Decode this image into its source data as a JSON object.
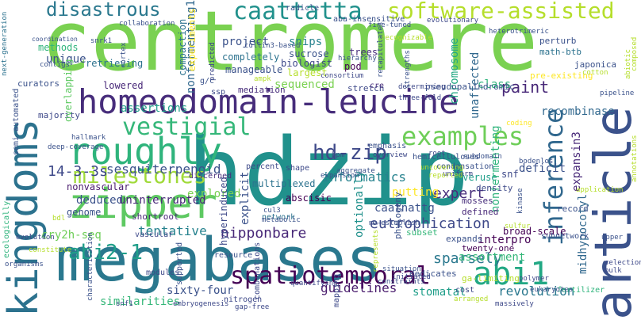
{
  "words": [
    {
      "text": "hdzip",
      "color": "#21918c"
    },
    {
      "text": "centromere",
      "color": "#7ad151"
    },
    {
      "text": "megabases",
      "color": "#2a788e"
    },
    {
      "text": "homeodomain-leucine",
      "color": "#472d7b"
    },
    {
      "text": "article",
      "color": "#3b528b"
    },
    {
      "text": "kingdoms",
      "color": "#2c728e"
    },
    {
      "text": "zipper",
      "color": "#5ec962"
    },
    {
      "text": "roughly",
      "color": "#2fb47c"
    },
    {
      "text": "spatiotemporal",
      "color": "#440154"
    },
    {
      "text": "abi1",
      "color": "#22a884"
    },
    {
      "text": "software-assisted",
      "color": "#b5de2b"
    },
    {
      "text": "disastrous",
      "color": "#2a788e"
    },
    {
      "text": "caattatta",
      "color": "#21918c"
    },
    {
      "text": "inference",
      "color": "#31688e"
    },
    {
      "text": "examples",
      "color": "#6ece58"
    },
    {
      "text": "milestones",
      "color": "#a0da39"
    },
    {
      "text": "hd-zip",
      "color": "#3e4989"
    },
    {
      "text": "vestigial",
      "color": "#35b779"
    },
    {
      "text": "abi2-1",
      "color": "#1f9e89"
    },
    {
      "text": "eutrophication",
      "color": "#3e4989"
    },
    {
      "text": "paint",
      "color": "#482878"
    },
    {
      "text": "expert",
      "color": "#472d7b"
    },
    {
      "text": "informatics",
      "color": "#26828e"
    },
    {
      "text": "nipponbare",
      "color": "#482878"
    },
    {
      "text": "tentative",
      "color": "#26828e"
    },
    {
      "text": "sparsely",
      "color": "#2a788e"
    },
    {
      "text": "guidelines",
      "color": "#481a6c"
    },
    {
      "text": "revolution",
      "color": "#2a788e"
    },
    {
      "text": "sesquiterpenoid",
      "color": "#3b528b"
    },
    {
      "text": "14-3-3s",
      "color": "#3e4989"
    },
    {
      "text": "assertions",
      "color": "#1f9e89"
    },
    {
      "text": "cry2h-seq",
      "color": "#6ece58"
    },
    {
      "text": "explored",
      "color": "#7ad151"
    },
    {
      "text": "deduced",
      "color": "#3b528b"
    },
    {
      "text": "uninterrupted",
      "color": "#482878"
    },
    {
      "text": "snips",
      "color": "#26828e"
    },
    {
      "text": "project",
      "color": "#3b528b"
    },
    {
      "text": "unique",
      "color": "#3b528b"
    },
    {
      "text": "class",
      "color": "#2fb47c"
    },
    {
      "text": "putting",
      "color": "#fde725"
    },
    {
      "text": "assortment",
      "color": "#35b779"
    },
    {
      "text": "stomatal",
      "color": "#1f9e89"
    },
    {
      "text": "sixty-four",
      "color": "#3b528b"
    },
    {
      "text": "similarities",
      "color": "#35b779"
    },
    {
      "text": "interpro",
      "color": "#440154"
    },
    {
      "text": "caatnattg",
      "color": "#3b528b"
    },
    {
      "text": "recombinase",
      "color": "#31688e"
    },
    {
      "text": "expansin3",
      "color": "#482878"
    },
    {
      "text": "midhypocotyl",
      "color": "#31688e"
    },
    {
      "text": "nonfermenting1",
      "color": "#31688e"
    },
    {
      "text": "chromosome",
      "color": "#22a884"
    },
    {
      "text": "unaffected",
      "color": "#31688e"
    },
    {
      "text": "deficit",
      "color": "#3b528b"
    },
    {
      "text": "snf",
      "color": "#3e4989"
    },
    {
      "text": "overuse",
      "color": "#1f9e89"
    },
    {
      "text": "nonvascular",
      "color": "#481a6c"
    },
    {
      "text": "genome",
      "color": "#3b528b"
    },
    {
      "text": "optionally",
      "color": "#21918c"
    },
    {
      "text": "explicit",
      "color": "#3b528b"
    },
    {
      "text": "multiplexed",
      "color": "#2c728e"
    },
    {
      "text": "hyperinduced",
      "color": "#3e4989"
    },
    {
      "text": "nonfermenting",
      "color": "#2fb47c"
    },
    {
      "text": "broad-scale",
      "color": "#440154"
    },
    {
      "text": "abscisic",
      "color": "#440154"
    },
    {
      "text": "sequenced",
      "color": "#7ad151"
    },
    {
      "text": "completely",
      "color": "#2c728e"
    },
    {
      "text": "manageable",
      "color": "#3b528b"
    },
    {
      "text": "compaction",
      "color": "#2c728e"
    },
    {
      "text": "sucrose",
      "color": "#3b528b"
    },
    {
      "text": "trees",
      "color": "#472d7b"
    },
    {
      "text": "biologist",
      "color": "#3e4989"
    },
    {
      "text": "largest",
      "color": "#b5de2b"
    },
    {
      "text": "pod",
      "color": "#440154"
    },
    {
      "text": "lowered",
      "color": "#482878"
    },
    {
      "text": "retrieving",
      "color": "#2c728e"
    },
    {
      "text": "methods",
      "color": "#2fb47c"
    },
    {
      "text": "coordination",
      "color": "#3b528b"
    },
    {
      "text": "curators",
      "color": "#3b528b"
    },
    {
      "text": "majority",
      "color": "#3e4989"
    },
    {
      "text": "overlapping",
      "color": "#5ec962"
    },
    {
      "text": "semi-automated",
      "color": "#3b528b"
    },
    {
      "text": "ecologically",
      "color": "#2fb47c"
    },
    {
      "text": "mediation",
      "color": "#472d7b"
    },
    {
      "text": "stretch",
      "color": "#3e4989"
    },
    {
      "text": "pseudopalindromic",
      "color": "#3b528b"
    },
    {
      "text": "perturb",
      "color": "#3b528b"
    },
    {
      "text": "math-btb",
      "color": "#2c728e"
    },
    {
      "text": "japonica",
      "color": "#3b528b"
    },
    {
      "text": "pre-existing",
      "color": "#fde725"
    },
    {
      "text": "density",
      "color": "#3e4989"
    },
    {
      "text": "mosses",
      "color": "#472d7b"
    },
    {
      "text": "defined",
      "color": "#482878"
    },
    {
      "text": "phylogeny",
      "color": "#3b528b"
    },
    {
      "text": "subset",
      "color": "#35b779"
    },
    {
      "text": "expands",
      "color": "#3b528b"
    },
    {
      "text": "twenty-one",
      "color": "#440154"
    },
    {
      "text": "dedicates",
      "color": "#3b528b"
    },
    {
      "text": "ga-limiting",
      "color": "#b5de2b"
    },
    {
      "text": "cost",
      "color": "#3e4989"
    },
    {
      "text": "modules",
      "color": "#3e4989"
    },
    {
      "text": "network",
      "color": "#2c728e"
    },
    {
      "text": "supported",
      "color": "#3b528b"
    },
    {
      "text": "combinations",
      "color": "#3e4989"
    },
    {
      "text": "nitrogen",
      "color": "#3e4989"
    },
    {
      "text": "resource",
      "color": "#3b528b"
    },
    {
      "text": "mapping",
      "color": "#3e4989"
    },
    {
      "text": "shortroot",
      "color": "#482878"
    },
    {
      "text": "record",
      "color": "#3b528b"
    },
    {
      "text": "fertilizer",
      "color": "#2fb47c"
    },
    {
      "text": "subnetwork",
      "color": "#3b528b"
    },
    {
      "text": "condensation",
      "color": "#3b528b"
    },
    {
      "text": "bodenlos",
      "color": "#3b528b"
    },
    {
      "text": "emphasis",
      "color": "#3b528b"
    },
    {
      "text": "hemicelluloses",
      "color": "#3b528b"
    },
    {
      "text": "overview",
      "color": "#3e4989"
    },
    {
      "text": "bpm",
      "color": "#3e4989"
    },
    {
      "text": "radicle",
      "color": "#3b528b"
    },
    {
      "text": "aba-insensitive",
      "color": "#3b528b"
    },
    {
      "text": "heterotrimeric",
      "color": "#3b528b"
    },
    {
      "text": "ssp",
      "color": "#3e4989"
    },
    {
      "text": "g/c",
      "color": "#3b528b"
    },
    {
      "text": "cre",
      "color": "#472d7b"
    },
    {
      "text": "vascular",
      "color": "#3e4989"
    },
    {
      "text": "percent",
      "color": "#3e4989"
    },
    {
      "text": "shape",
      "color": "#3e4989"
    },
    {
      "text": "discerned",
      "color": "#472d7b"
    },
    {
      "text": "coding",
      "color": "#fde725"
    },
    {
      "text": "annotations",
      "color": "#b5de2b"
    },
    {
      "text": "abiotic",
      "color": "#b5de2b"
    },
    {
      "text": "composed",
      "color": "#b5de2b"
    },
    {
      "text": "pipeline",
      "color": "#3b528b"
    },
    {
      "text": "cotton",
      "color": "#b5de2b"
    },
    {
      "text": "selection",
      "color": "#3e4989"
    },
    {
      "text": "bulk",
      "color": "#3e4989"
    },
    {
      "text": "polymer",
      "color": "#3e4989"
    },
    {
      "text": "eukaryotes",
      "color": "#3b528b"
    },
    {
      "text": "organisms",
      "color": "#3b528b"
    },
    {
      "text": "evolution",
      "color": "#3e4989"
    },
    {
      "text": "snf1",
      "color": "#3e4989"
    },
    {
      "text": "embryogenesis",
      "color": "#3e4989"
    },
    {
      "text": "gap-free",
      "color": "#3e4989"
    },
    {
      "text": "characterisation",
      "color": "#3b528b"
    },
    {
      "text": "constitute",
      "color": "#b5de2b"
    },
    {
      "text": "bdl",
      "color": "#b5de2b"
    },
    {
      "text": "deep-coverage",
      "color": "#3b528b"
    },
    {
      "text": "hallmark",
      "color": "#3b528b"
    },
    {
      "text": "next-generation",
      "color": "#2c728e"
    },
    {
      "text": "contigs",
      "color": "#3b528b"
    },
    {
      "text": "cortex",
      "color": "#3b528b"
    },
    {
      "text": "snrk1",
      "color": "#3b528b"
    },
    {
      "text": "predicted",
      "color": "#3e4989"
    },
    {
      "text": "cullin3-based",
      "color": "#3b528b"
    },
    {
      "text": "hierarchy",
      "color": "#3b528b"
    },
    {
      "text": "consortium",
      "color": "#3e4989"
    },
    {
      "text": "ampk",
      "color": "#b5de2b"
    },
    {
      "text": "cul3",
      "color": "#3b528b"
    },
    {
      "text": "metabolic",
      "color": "#3b528b"
    },
    {
      "text": "re-establish",
      "color": "#3b528b"
    },
    {
      "text": "quantifying",
      "color": "#3e4989"
    },
    {
      "text": "massively",
      "color": "#3e4989"
    },
    {
      "text": "arranged",
      "color": "#b5de2b"
    },
    {
      "text": "initiated",
      "color": "#3e4989"
    },
    {
      "text": "situation",
      "color": "#3b528b"
    },
    {
      "text": "uniform",
      "color": "#3e4989"
    },
    {
      "text": "kinase",
      "color": "#3b528b"
    },
    {
      "text": "sulfur",
      "color": "#b5de2b"
    },
    {
      "text": "three-fold",
      "color": "#3e4989"
    },
    {
      "text": "determining",
      "color": "#3e4989"
    },
    {
      "text": "strengths",
      "color": "#3b528b"
    },
    {
      "text": "uncovering",
      "color": "#b5de2b"
    },
    {
      "text": "subdomain",
      "color": "#3b528b"
    },
    {
      "text": "aggregate",
      "color": "#3b528b"
    },
    {
      "text": "reported",
      "color": "#b5de2b"
    },
    {
      "text": "root",
      "color": "#3e4989"
    },
    {
      "text": "upper",
      "color": "#3b528b"
    },
    {
      "text": "fine-tuned",
      "color": "#3b528b"
    },
    {
      "text": "evolutionary",
      "color": "#3e4989"
    },
    {
      "text": "recognizable",
      "color": "#b5de2b"
    },
    {
      "text": "recapitulates",
      "color": "#3b528b"
    },
    {
      "text": "collaboration",
      "color": "#3b528b"
    },
    {
      "text": "experiments",
      "color": "#fde725"
    },
    {
      "text": "application",
      "color": "#b5de2b"
    },
    {
      "text": "expansion",
      "color": "#3b528b"
    },
    {
      "text": "represents",
      "color": "#b5de2b"
    },
    {
      "text": "constraints",
      "color": "#3b528b"
    }
  ]
}
